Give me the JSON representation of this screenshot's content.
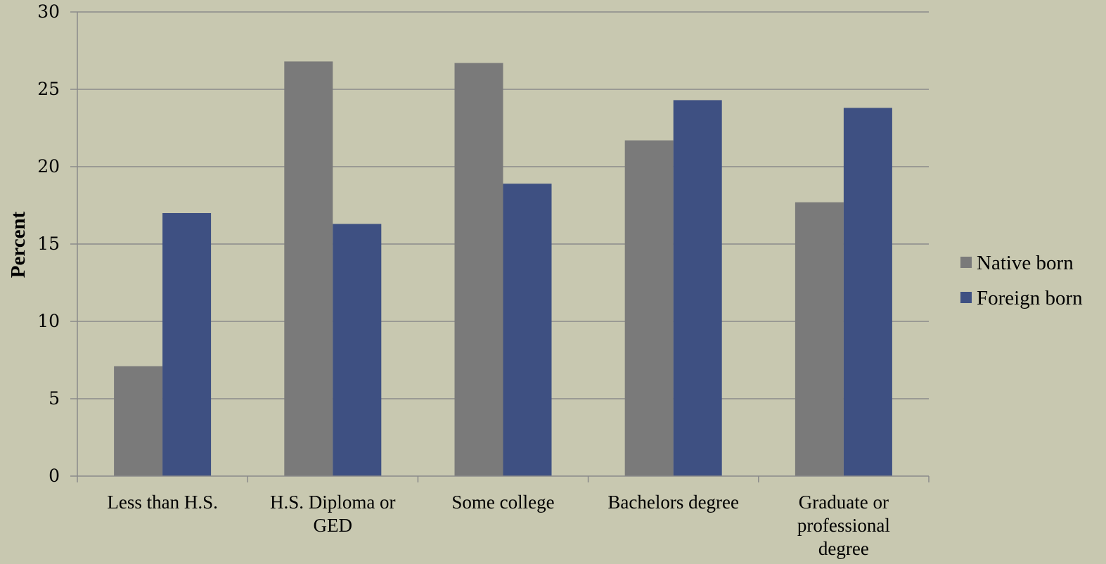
{
  "chart_data": {
    "type": "bar",
    "title": "",
    "xlabel": "",
    "ylabel": "Percent",
    "ylim": [
      0,
      30
    ],
    "yticks": [
      "0",
      "5",
      "10",
      "15",
      "20",
      "25",
      "30"
    ],
    "grid": true,
    "legend_position": "right",
    "categories": [
      [
        "Less than H.S."
      ],
      [
        "H.S. Diploma or",
        "GED"
      ],
      [
        "Some college"
      ],
      [
        "Bachelors degree"
      ],
      [
        "Graduate or",
        "professional",
        "degree"
      ]
    ],
    "series": [
      {
        "name": "Native born",
        "color": "#7a7a7a",
        "values": [
          7.1,
          26.8,
          26.7,
          21.7,
          17.7
        ]
      },
      {
        "name": "Foreign born",
        "color": "#3e5082",
        "values": [
          17.0,
          16.3,
          18.9,
          24.3,
          23.8
        ]
      }
    ],
    "colors": {
      "background": "#c8c8b0",
      "gridline": "#8a8a8a",
      "axis": "#8a8a8a"
    }
  }
}
